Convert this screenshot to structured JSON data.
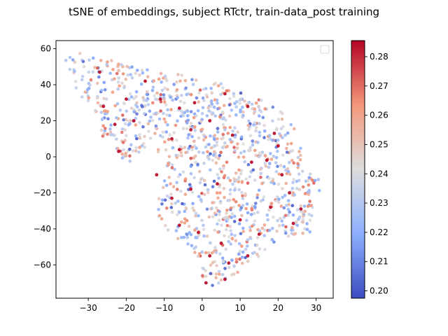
{
  "chart_data": {
    "type": "scatter",
    "title": "tSNE of embeddings, subject RTctr, train-data_post training",
    "xlabel": "",
    "ylabel": "",
    "xlim": [
      -38.5,
      34.5
    ],
    "ylim": [
      -78.5,
      64.5
    ],
    "xticks": [
      -30,
      -20,
      -10,
      0,
      10,
      20,
      30
    ],
    "yticks": [
      -60,
      -40,
      -20,
      0,
      20,
      40,
      60
    ],
    "grid": false,
    "legend": "upper right, empty",
    "colormap": "coolwarm",
    "color_range": [
      0.1975,
      0.2855
    ],
    "colorbar_ticks": [
      0.2,
      0.21,
      0.22,
      0.23,
      0.24,
      0.25,
      0.26,
      0.27,
      0.28
    ],
    "colorbar_tick_labels": [
      "0.20",
      "0.21",
      "0.22",
      "0.23",
      "0.24",
      "0.25",
      "0.26",
      "0.27",
      "0.28"
    ],
    "region_outline": [
      [
        -36,
        58
      ],
      [
        -28,
        57
      ],
      [
        -22,
        52
      ],
      [
        -16,
        49
      ],
      [
        -10,
        47
      ],
      [
        -4,
        45
      ],
      [
        2,
        43
      ],
      [
        8,
        38
      ],
      [
        14,
        33
      ],
      [
        20,
        27
      ],
      [
        24,
        17
      ],
      [
        26,
        10
      ],
      [
        26,
        3
      ],
      [
        28,
        -5
      ],
      [
        31,
        -13
      ],
      [
        31,
        -25
      ],
      [
        29,
        -33
      ],
      [
        29,
        -42
      ],
      [
        25,
        -43
      ],
      [
        20,
        -47
      ],
      [
        15,
        -55
      ],
      [
        12,
        -60
      ],
      [
        8,
        -67
      ],
      [
        2,
        -72
      ],
      [
        -1,
        -67
      ],
      [
        -1,
        -58
      ],
      [
        -4,
        -48
      ],
      [
        -8,
        -46
      ],
      [
        -10,
        -38
      ],
      [
        -13,
        -28
      ],
      [
        -11,
        -15
      ],
      [
        -10,
        -5
      ],
      [
        -14,
        5
      ],
      [
        -18,
        0
      ],
      [
        -20,
        -5
      ],
      [
        -23,
        5
      ],
      [
        -27,
        12
      ],
      [
        -28,
        25
      ],
      [
        -30,
        30
      ],
      [
        -33,
        35
      ],
      [
        -35,
        45
      ],
      [
        -36,
        52
      ]
    ],
    "n_points": 1100,
    "highlight_points": [
      [
        -27,
        47
      ],
      [
        -20,
        32
      ],
      [
        -23,
        18
      ],
      [
        -22,
        3
      ],
      [
        -26,
        28
      ],
      [
        -11,
        32
      ],
      [
        -6,
        27
      ],
      [
        -3,
        15
      ],
      [
        -8,
        10
      ],
      [
        -6,
        4
      ],
      [
        -12,
        -10
      ],
      [
        -8,
        -23
      ],
      [
        -6,
        -38
      ],
      [
        -1,
        -42
      ],
      [
        2,
        -55
      ],
      [
        5,
        -48
      ],
      [
        7,
        -59
      ],
      [
        1,
        -70
      ],
      [
        6,
        -68
      ],
      [
        12,
        -55
      ],
      [
        4,
        -15
      ],
      [
        2,
        20
      ],
      [
        8,
        12
      ],
      [
        13,
        -3
      ],
      [
        19,
        13
      ],
      [
        21,
        -10
      ],
      [
        23,
        -20
      ],
      [
        24,
        -37
      ],
      [
        26,
        -29
      ],
      [
        18,
        -28
      ],
      [
        15,
        -43
      ],
      [
        6,
        35
      ],
      [
        12,
        28
      ],
      [
        -2,
        30
      ],
      [
        -15,
        42
      ],
      [
        -18,
        20
      ],
      [
        10,
        -35
      ],
      [
        -3,
        -18
      ],
      [
        17,
        -2
      ],
      [
        20,
        6
      ]
    ]
  }
}
